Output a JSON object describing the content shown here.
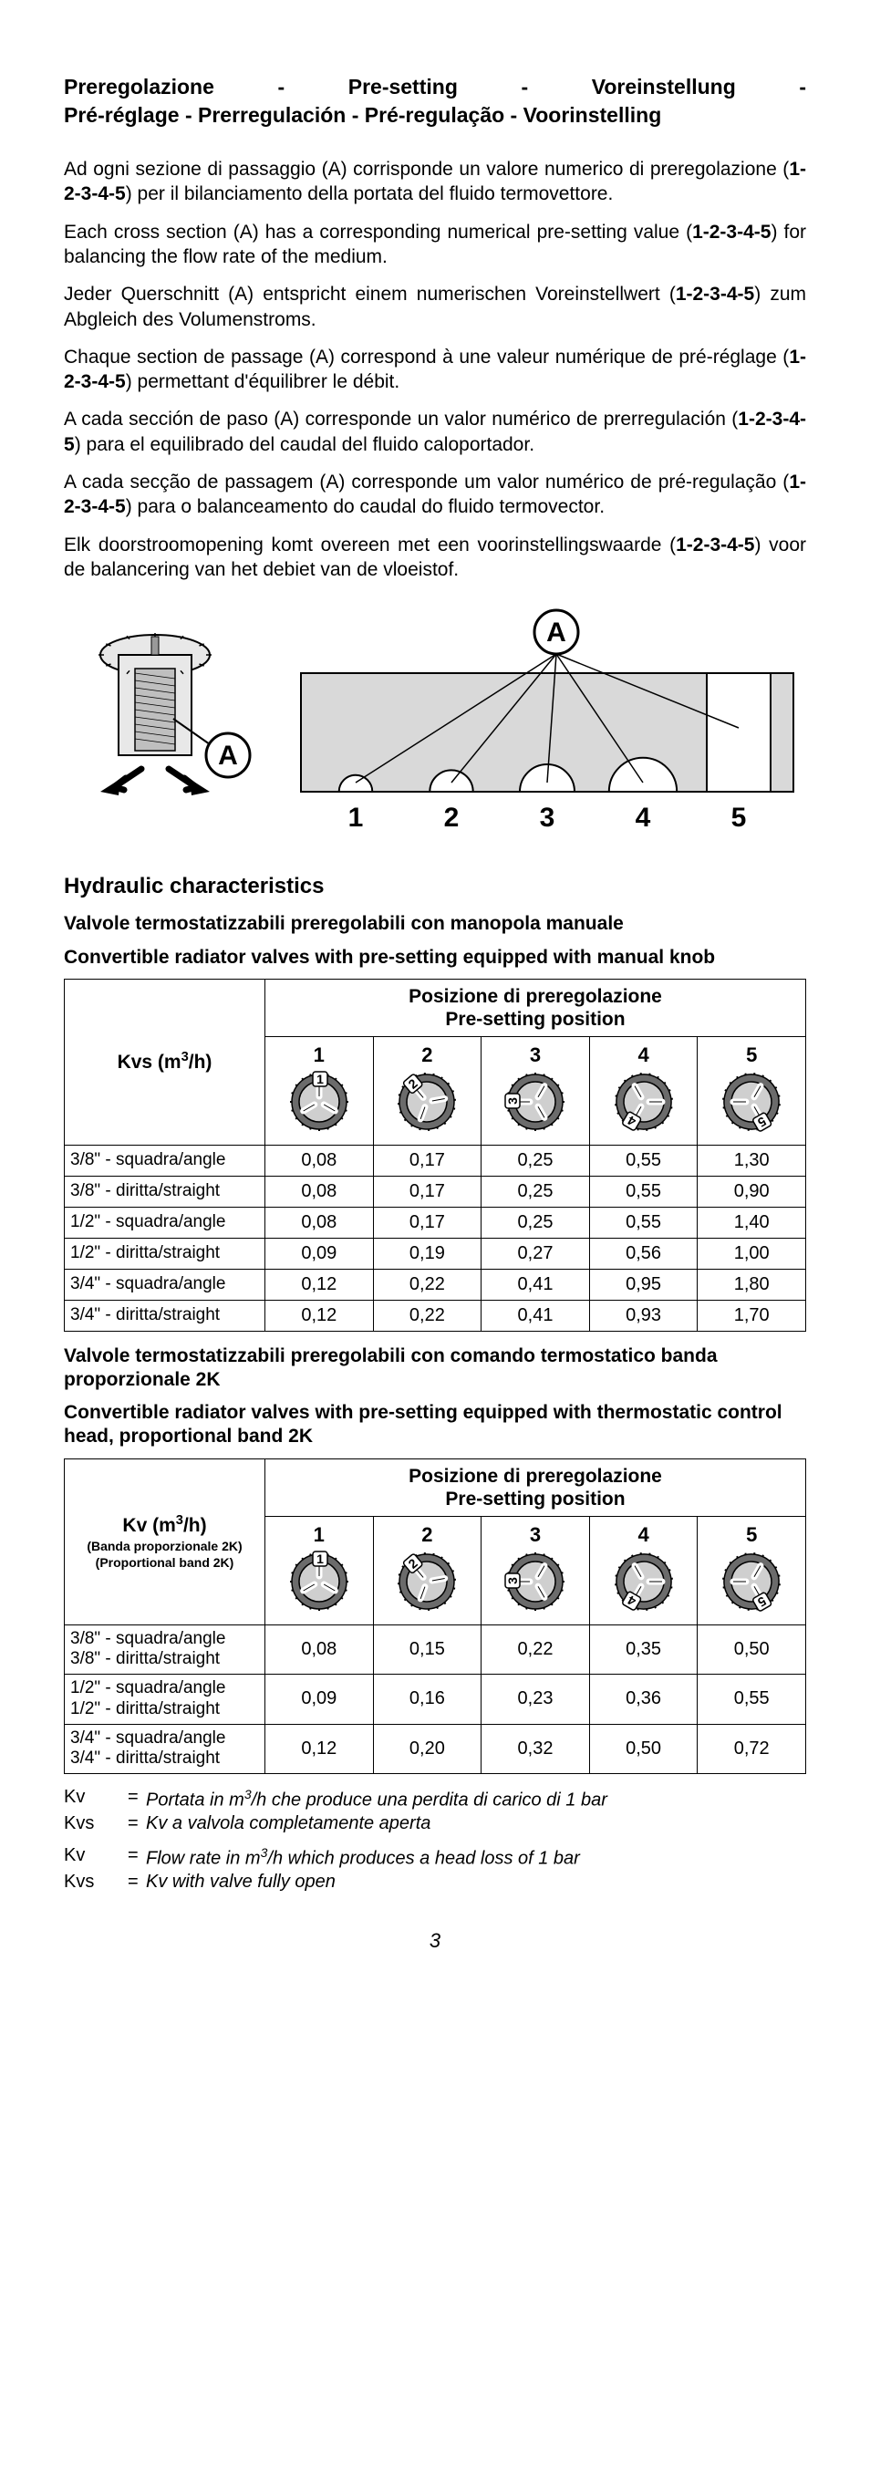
{
  "title": {
    "line1": "Preregolazione - Pre-setting - Voreinstellung -",
    "line2": "Pré-réglage - Prerregulación - Pré-regulação - Voorinstelling"
  },
  "paragraphs": [
    {
      "pre": "Ad ogni sezione di passaggio (A) corrisponde un valore numerico di preregolazione (",
      "bold": "1-2-3-4-5",
      "post": ") per il bilanciamento della portata del fluido termovettore."
    },
    {
      "pre": "Each cross section (A) has a corresponding numerical pre-setting value (",
      "bold": "1-2-3-4-5",
      "post": ") for balancing the flow rate of the medium."
    },
    {
      "pre": "Jeder Querschnitt (A) entspricht einem numerischen Voreinstellwert (",
      "bold": "1-2-3-4-5",
      "post": ") zum Abgleich des Volumenstroms."
    },
    {
      "pre": "Chaque section de passage (A) correspond à une valeur numérique de pré-réglage (",
      "bold": "1-2-3-4-5",
      "post": ") permettant d'équilibrer le débit."
    },
    {
      "pre": "A cada sección de paso (A) corresponde un valor numérico de prerregulación (",
      "bold": "1-2-3-4-5",
      "post": ") para el equilibrado del caudal del fluido caloportador."
    },
    {
      "pre": "A cada secção de passagem (A) corresponde um valor numérico de pré-regulação (",
      "bold": "1-2-3-4-5",
      "post": ") para o balanceamento do caudal do fluido termovector."
    },
    {
      "pre": "Elk doorstroomopening komt overeen met een voorinstellingswaarde (",
      "bold": "1-2-3-4-5",
      "post": ") voor de balancering van het debiet van de vloeistof."
    }
  ],
  "diagram": {
    "label_A": "A",
    "numbers": [
      "1",
      "2",
      "3",
      "4",
      "5"
    ],
    "openings": [
      14,
      26,
      40,
      56,
      100
    ],
    "bg_fill": "#d9d9d9",
    "stroke": "#000000"
  },
  "section_heading": "Hydraulic characteristics",
  "table1": {
    "sub1": "Valvole termostatizzabili preregolabili con manopola manuale",
    "sub2": "Convertible radiator valves with pre-setting equipped with manual knob",
    "left_header_html": "Kvs (m<sup>3</sup>/h)",
    "top_header_line1": "Posizione di preregolazione",
    "top_header_line2": "Pre-setting position",
    "positions": [
      "1",
      "2",
      "3",
      "4",
      "5"
    ],
    "rows": [
      {
        "label": "3/8\" - squadra/angle",
        "vals": [
          "0,08",
          "0,17",
          "0,25",
          "0,55",
          "1,30"
        ]
      },
      {
        "label": "3/8\" - diritta/straight",
        "vals": [
          "0,08",
          "0,17",
          "0,25",
          "0,55",
          "0,90"
        ]
      },
      {
        "label": "1/2\" - squadra/angle",
        "vals": [
          "0,08",
          "0,17",
          "0,25",
          "0,55",
          "1,40"
        ]
      },
      {
        "label": "1/2\" - diritta/straight",
        "vals": [
          "0,09",
          "0,19",
          "0,27",
          "0,56",
          "1,00"
        ]
      },
      {
        "label": "3/4\" - squadra/angle",
        "vals": [
          "0,12",
          "0,22",
          "0,41",
          "0,95",
          "1,80"
        ]
      },
      {
        "label": "3/4\" - diritta/straight",
        "vals": [
          "0,12",
          "0,22",
          "0,41",
          "0,93",
          "1,70"
        ]
      }
    ]
  },
  "table2": {
    "sub1": "Valvole termostatizzabili preregolabili con comando termostatico banda proporzionale 2K",
    "sub2": "Convertible radiator valves with pre-setting equipped with thermostatic control head, proportional band 2K",
    "left_header_html": "Kv (m<sup>3</sup>/h)",
    "left_header_small1": "(Banda proporzionale 2K)",
    "left_header_small2": "(Proportional band 2K)",
    "top_header_line1": "Posizione di preregolazione",
    "top_header_line2": "Pre-setting position",
    "positions": [
      "1",
      "2",
      "3",
      "4",
      "5"
    ],
    "rows": [
      {
        "label1": "3/8\" - squadra/angle",
        "label2": "3/8\" - diritta/straight",
        "vals": [
          "0,08",
          "0,15",
          "0,22",
          "0,35",
          "0,50"
        ]
      },
      {
        "label1": "1/2\" - squadra/angle",
        "label2": "1/2\" - diritta/straight",
        "vals": [
          "0,09",
          "0,16",
          "0,23",
          "0,36",
          "0,55"
        ]
      },
      {
        "label1": "3/4\" - squadra/angle",
        "label2": "3/4\" - diritta/straight",
        "vals": [
          "0,12",
          "0,20",
          "0,32",
          "0,50",
          "0,72"
        ]
      }
    ]
  },
  "notes": [
    {
      "key": "Kv",
      "val_html": "Portata in m<sup>3</sup>/h che produce una perdita di carico di 1 bar"
    },
    {
      "key": "Kvs",
      "val_html": "Kv a valvola completamente aperta"
    },
    {
      "spacer": true
    },
    {
      "key": "Kv",
      "val_html": "Flow rate in m<sup>3</sup>/h which produces a head loss of 1 bar"
    },
    {
      "key": "Kvs",
      "val_html": "Kv with valve fully open"
    }
  ],
  "page_number": "3",
  "knob_style": {
    "outer_fill": "#6b6b6b",
    "inner_fill": "#cfcfcf",
    "slot_fill": "#ffffff",
    "num_bg": "#ffffff",
    "text": "#000000",
    "radius_outer": 30,
    "radius_inner": 22
  }
}
